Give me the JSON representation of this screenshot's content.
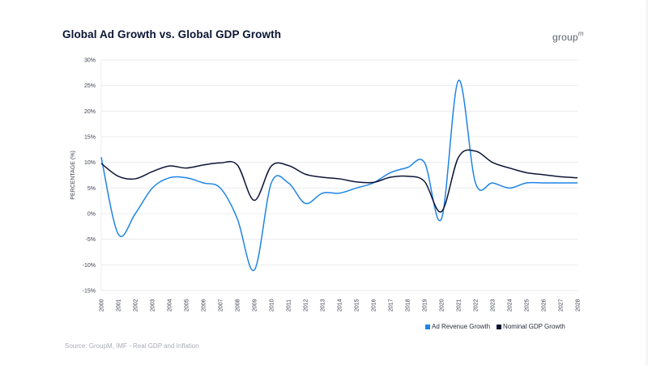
{
  "header": {
    "title": "Global Ad Growth vs. Global GDP Growth",
    "logo_text": "group",
    "logo_super": "m"
  },
  "footer": {
    "source": "Source: GroupM, IMF - Real GDP and Inflation"
  },
  "colors": {
    "ad_revenue": "#1f84e6",
    "gdp": "#0d1436",
    "grid": "#e6e8ee"
  },
  "chart_data": {
    "type": "line",
    "title": "Global Ad Growth vs. Global GDP Growth",
    "xlabel": "",
    "ylabel": "PERCENTAGE (%)",
    "ylim": [
      -15,
      30
    ],
    "yticks": [
      -15,
      -10,
      -5,
      0,
      5,
      10,
      15,
      20,
      25,
      30
    ],
    "ytick_labels": [
      "-15%",
      "-10%",
      "-5%",
      "0%",
      "5%",
      "10%",
      "15%",
      "20%",
      "25%",
      "30%"
    ],
    "grid": true,
    "legend_position": "bottom-right",
    "x": [
      "2000",
      "2001",
      "2002",
      "2003",
      "2004",
      "2005",
      "2006",
      "2007",
      "2008",
      "2009",
      "2010",
      "2011",
      "2012",
      "2013",
      "2014",
      "2015",
      "2016",
      "2017",
      "2018",
      "2019",
      "2020",
      "2021",
      "2022",
      "2023",
      "2024",
      "2025",
      "2026",
      "2027",
      "2028"
    ],
    "series": [
      {
        "name": "Ad Revenue Growth",
        "values": [
          11,
          -4,
          0,
          5,
          7,
          7,
          6,
          5,
          -1,
          -11,
          6,
          6,
          2,
          4,
          4,
          5,
          6,
          8,
          9,
          10,
          -1,
          26,
          6,
          6,
          5,
          6,
          6,
          6,
          6
        ]
      },
      {
        "name": "Nominal GDP Growth",
        "values": [
          9.8,
          7.3,
          6.8,
          8.2,
          9.3,
          8.9,
          9.5,
          9.9,
          9.5,
          2.6,
          9.3,
          9.4,
          7.7,
          7.1,
          6.8,
          6.2,
          6.1,
          7.1,
          7.3,
          6.3,
          0.4,
          11.0,
          12.2,
          10.0,
          8.9,
          8.0,
          7.6,
          7.2,
          7.0
        ]
      }
    ]
  }
}
